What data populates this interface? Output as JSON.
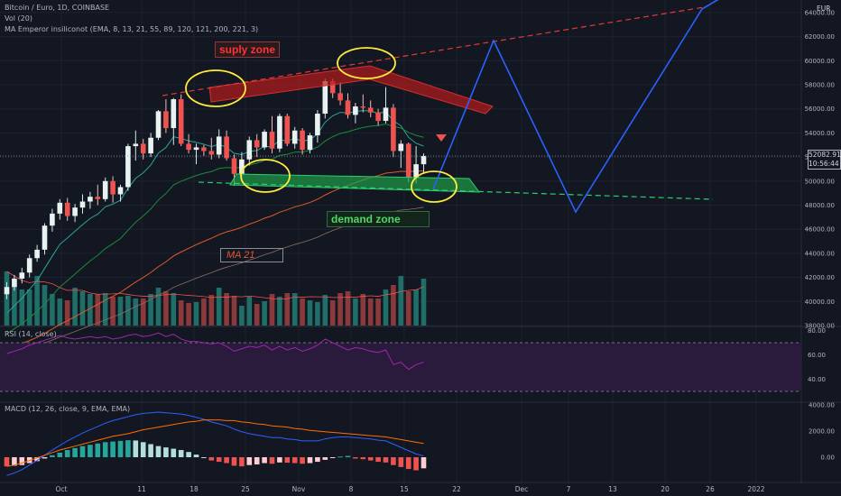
{
  "legend": {
    "title": "Bitcoin / Euro, 1D, COINBASE",
    "vol": "Vol (20)",
    "ma": "MA Emperor insiliconot (EMA, 8, 13, 21, 55, 89, 120, 121, 200, 221, 3)",
    "rsi": "RSI (14, close)",
    "macd": "MACD (12, 26, close, 9, EMA, EMA)"
  },
  "annotations": {
    "supply": "suply zone",
    "demand": "demand zone",
    "ma21": "MA 21"
  },
  "price_axis": {
    "currency": "EUR",
    "last_price": "52082.91",
    "countdown": "10:56:44"
  },
  "colors": {
    "up": "#26a69a",
    "down": "#ef5350",
    "supply": "#b71c1c",
    "demand": "#1b8a3a",
    "projection": "#2962ff",
    "circle": "#ffeb3b",
    "rsi_line": "#9c27b0",
    "macd_line": "#2962ff",
    "signal_line": "#ff6d00"
  },
  "chart_data": [
    {
      "type": "candlestick",
      "title": "Bitcoin / Euro, 1D, COINBASE",
      "y_ticks": [
        38000,
        40000,
        42000,
        44000,
        46000,
        48000,
        50000,
        52000,
        54000,
        56000,
        58000,
        60000,
        62000,
        64000
      ],
      "ylim": [
        38000,
        64800
      ],
      "x_ticks": [
        "Oct",
        "11",
        "18",
        "25",
        "Nov",
        "8",
        "15",
        "22",
        "Dec",
        "7",
        "13",
        "20",
        "26",
        "2022"
      ],
      "candles": [
        [
          40600,
          41600,
          40200,
          41200
        ],
        [
          41200,
          42200,
          40900,
          41900
        ],
        [
          41900,
          42800,
          41500,
          42400
        ],
        [
          42400,
          43900,
          42000,
          43600
        ],
        [
          43600,
          44700,
          43300,
          44300
        ],
        [
          44300,
          46500,
          43900,
          46300
        ],
        [
          46300,
          47700,
          45800,
          47300
        ],
        [
          47300,
          48500,
          46800,
          48200
        ],
        [
          48200,
          48600,
          46700,
          47100
        ],
        [
          47100,
          48100,
          46600,
          47800
        ],
        [
          47800,
          48900,
          47300,
          48300
        ],
        [
          48300,
          49100,
          47700,
          48700
        ],
        [
          48700,
          49700,
          48000,
          48500
        ],
        [
          48500,
          50300,
          48300,
          50000
        ],
        [
          50000,
          50400,
          48200,
          48900
        ],
        [
          48900,
          49700,
          48300,
          49500
        ],
        [
          49500,
          53100,
          49200,
          52900
        ],
        [
          52900,
          54200,
          51700,
          53100
        ],
        [
          53100,
          53500,
          51800,
          52300
        ],
        [
          52300,
          54000,
          52000,
          53600
        ],
        [
          53600,
          55900,
          53400,
          55800
        ],
        [
          55800,
          56800,
          54000,
          54400
        ],
        [
          54400,
          56900,
          53000,
          56800
        ],
        [
          56800,
          57200,
          52900,
          53100
        ],
        [
          53100,
          53900,
          52300,
          52600
        ],
        [
          52600,
          53100,
          51400,
          52800
        ],
        [
          52800,
          53000,
          52100,
          52500
        ],
        [
          52500,
          53600,
          51800,
          52200
        ],
        [
          52200,
          54300,
          51900,
          53700
        ],
        [
          53700,
          54200,
          51700,
          51900
        ],
        [
          51900,
          52200,
          49600,
          50600
        ],
        [
          50600,
          52400,
          50000,
          51800
        ],
        [
          51800,
          53700,
          51300,
          53400
        ],
        [
          53400,
          53900,
          52000,
          52800
        ],
        [
          52800,
          54300,
          52600,
          54100
        ],
        [
          54100,
          55400,
          52300,
          52700
        ],
        [
          52700,
          55600,
          52400,
          55400
        ],
        [
          55400,
          55600,
          52900,
          53100
        ],
        [
          53100,
          54500,
          52700,
          54200
        ],
        [
          54200,
          54400,
          52200,
          52600
        ],
        [
          52600,
          54000,
          52300,
          53800
        ],
        [
          53800,
          55900,
          53200,
          55600
        ],
        [
          55600,
          58500,
          55200,
          58300
        ],
        [
          58300,
          58500,
          56900,
          57300
        ],
        [
          57300,
          58200,
          56300,
          56700
        ],
        [
          56700,
          57300,
          55200,
          55500
        ],
        [
          55500,
          56500,
          54800,
          56200
        ],
        [
          56200,
          57200,
          55700,
          56100
        ],
        [
          56100,
          56700,
          55300,
          55700
        ],
        [
          55700,
          56000,
          54600,
          55000
        ],
        [
          55000,
          57800,
          54800,
          56100
        ],
        [
          56100,
          56400,
          52000,
          52500
        ],
        [
          52500,
          53400,
          51100,
          53100
        ],
        [
          53100,
          53200,
          49900,
          50300
        ],
        [
          50300,
          52900,
          49800,
          51400
        ],
        [
          51400,
          52300,
          50600,
          52083
        ]
      ],
      "volume": [
        60,
        50,
        40,
        40,
        55,
        45,
        35,
        30,
        28,
        42,
        38,
        35,
        35,
        36,
        32,
        32,
        33,
        30,
        30,
        35,
        42,
        38,
        36,
        28,
        25,
        26,
        30,
        34,
        42,
        36,
        33,
        22,
        32,
        24,
        27,
        35,
        32,
        36,
        36,
        30,
        28,
        26,
        34,
        28,
        36,
        38,
        30,
        35,
        30,
        30,
        40,
        45,
        55,
        38,
        40,
        52
      ]
    },
    {
      "type": "line",
      "title": "RSI (14, close)",
      "y_ticks": [
        40,
        60,
        80
      ],
      "bands": [
        30,
        70
      ],
      "values": [
        61,
        63,
        65,
        68,
        70,
        72,
        74,
        76,
        74,
        73,
        74,
        75,
        74,
        75,
        73,
        74,
        76,
        77,
        75,
        76,
        78,
        75,
        77,
        73,
        71,
        71,
        70,
        69,
        70,
        67,
        63,
        65,
        67,
        66,
        68,
        64,
        67,
        64,
        66,
        63,
        65,
        68,
        73,
        70,
        67,
        64,
        66,
        65,
        63,
        62,
        64,
        52,
        54,
        48,
        52,
        54
      ]
    },
    {
      "type": "bar",
      "title": "MACD (12, 26, close, 9, EMA, EMA)",
      "y_ticks": [
        0,
        2000,
        4000
      ],
      "histogram": [
        -700,
        -650,
        -600,
        -450,
        -300,
        -100,
        150,
        350,
        550,
        700,
        850,
        950,
        1050,
        1150,
        1200,
        1250,
        1300,
        1280,
        1150,
        1000,
        850,
        750,
        650,
        550,
        400,
        200,
        0,
        -250,
        -350,
        -450,
        -650,
        -700,
        -600,
        -550,
        -450,
        -500,
        -400,
        -420,
        -450,
        -500,
        -450,
        -350,
        -200,
        -50,
        50,
        100,
        -100,
        -150,
        -250,
        -350,
        -400,
        -600,
        -750,
        -900,
        -1000,
        -850
      ],
      "macd": [
        -1400,
        -1200,
        -950,
        -600,
        -250,
        150,
        550,
        900,
        1250,
        1550,
        1850,
        2100,
        2350,
        2600,
        2800,
        2950,
        3100,
        3250,
        3350,
        3400,
        3450,
        3400,
        3350,
        3300,
        3200,
        3050,
        2900,
        2700,
        2550,
        2400,
        2150,
        1950,
        1800,
        1700,
        1600,
        1500,
        1500,
        1400,
        1350,
        1250,
        1250,
        1250,
        1400,
        1500,
        1550,
        1550,
        1500,
        1450,
        1400,
        1300,
        1250,
        1000,
        750,
        500,
        250,
        100
      ],
      "signal": [
        -700,
        -600,
        -450,
        -250,
        -50,
        150,
        350,
        550,
        700,
        850,
        1000,
        1150,
        1300,
        1450,
        1600,
        1700,
        1800,
        1950,
        2100,
        2200,
        2300,
        2400,
        2500,
        2600,
        2700,
        2750,
        2850,
        2850,
        2850,
        2800,
        2800,
        2700,
        2650,
        2550,
        2500,
        2400,
        2350,
        2300,
        2200,
        2150,
        2050,
        2000,
        1950,
        1900,
        1850,
        1800,
        1750,
        1700,
        1650,
        1600,
        1550,
        1450,
        1350,
        1250,
        1150,
        1050
      ]
    }
  ]
}
